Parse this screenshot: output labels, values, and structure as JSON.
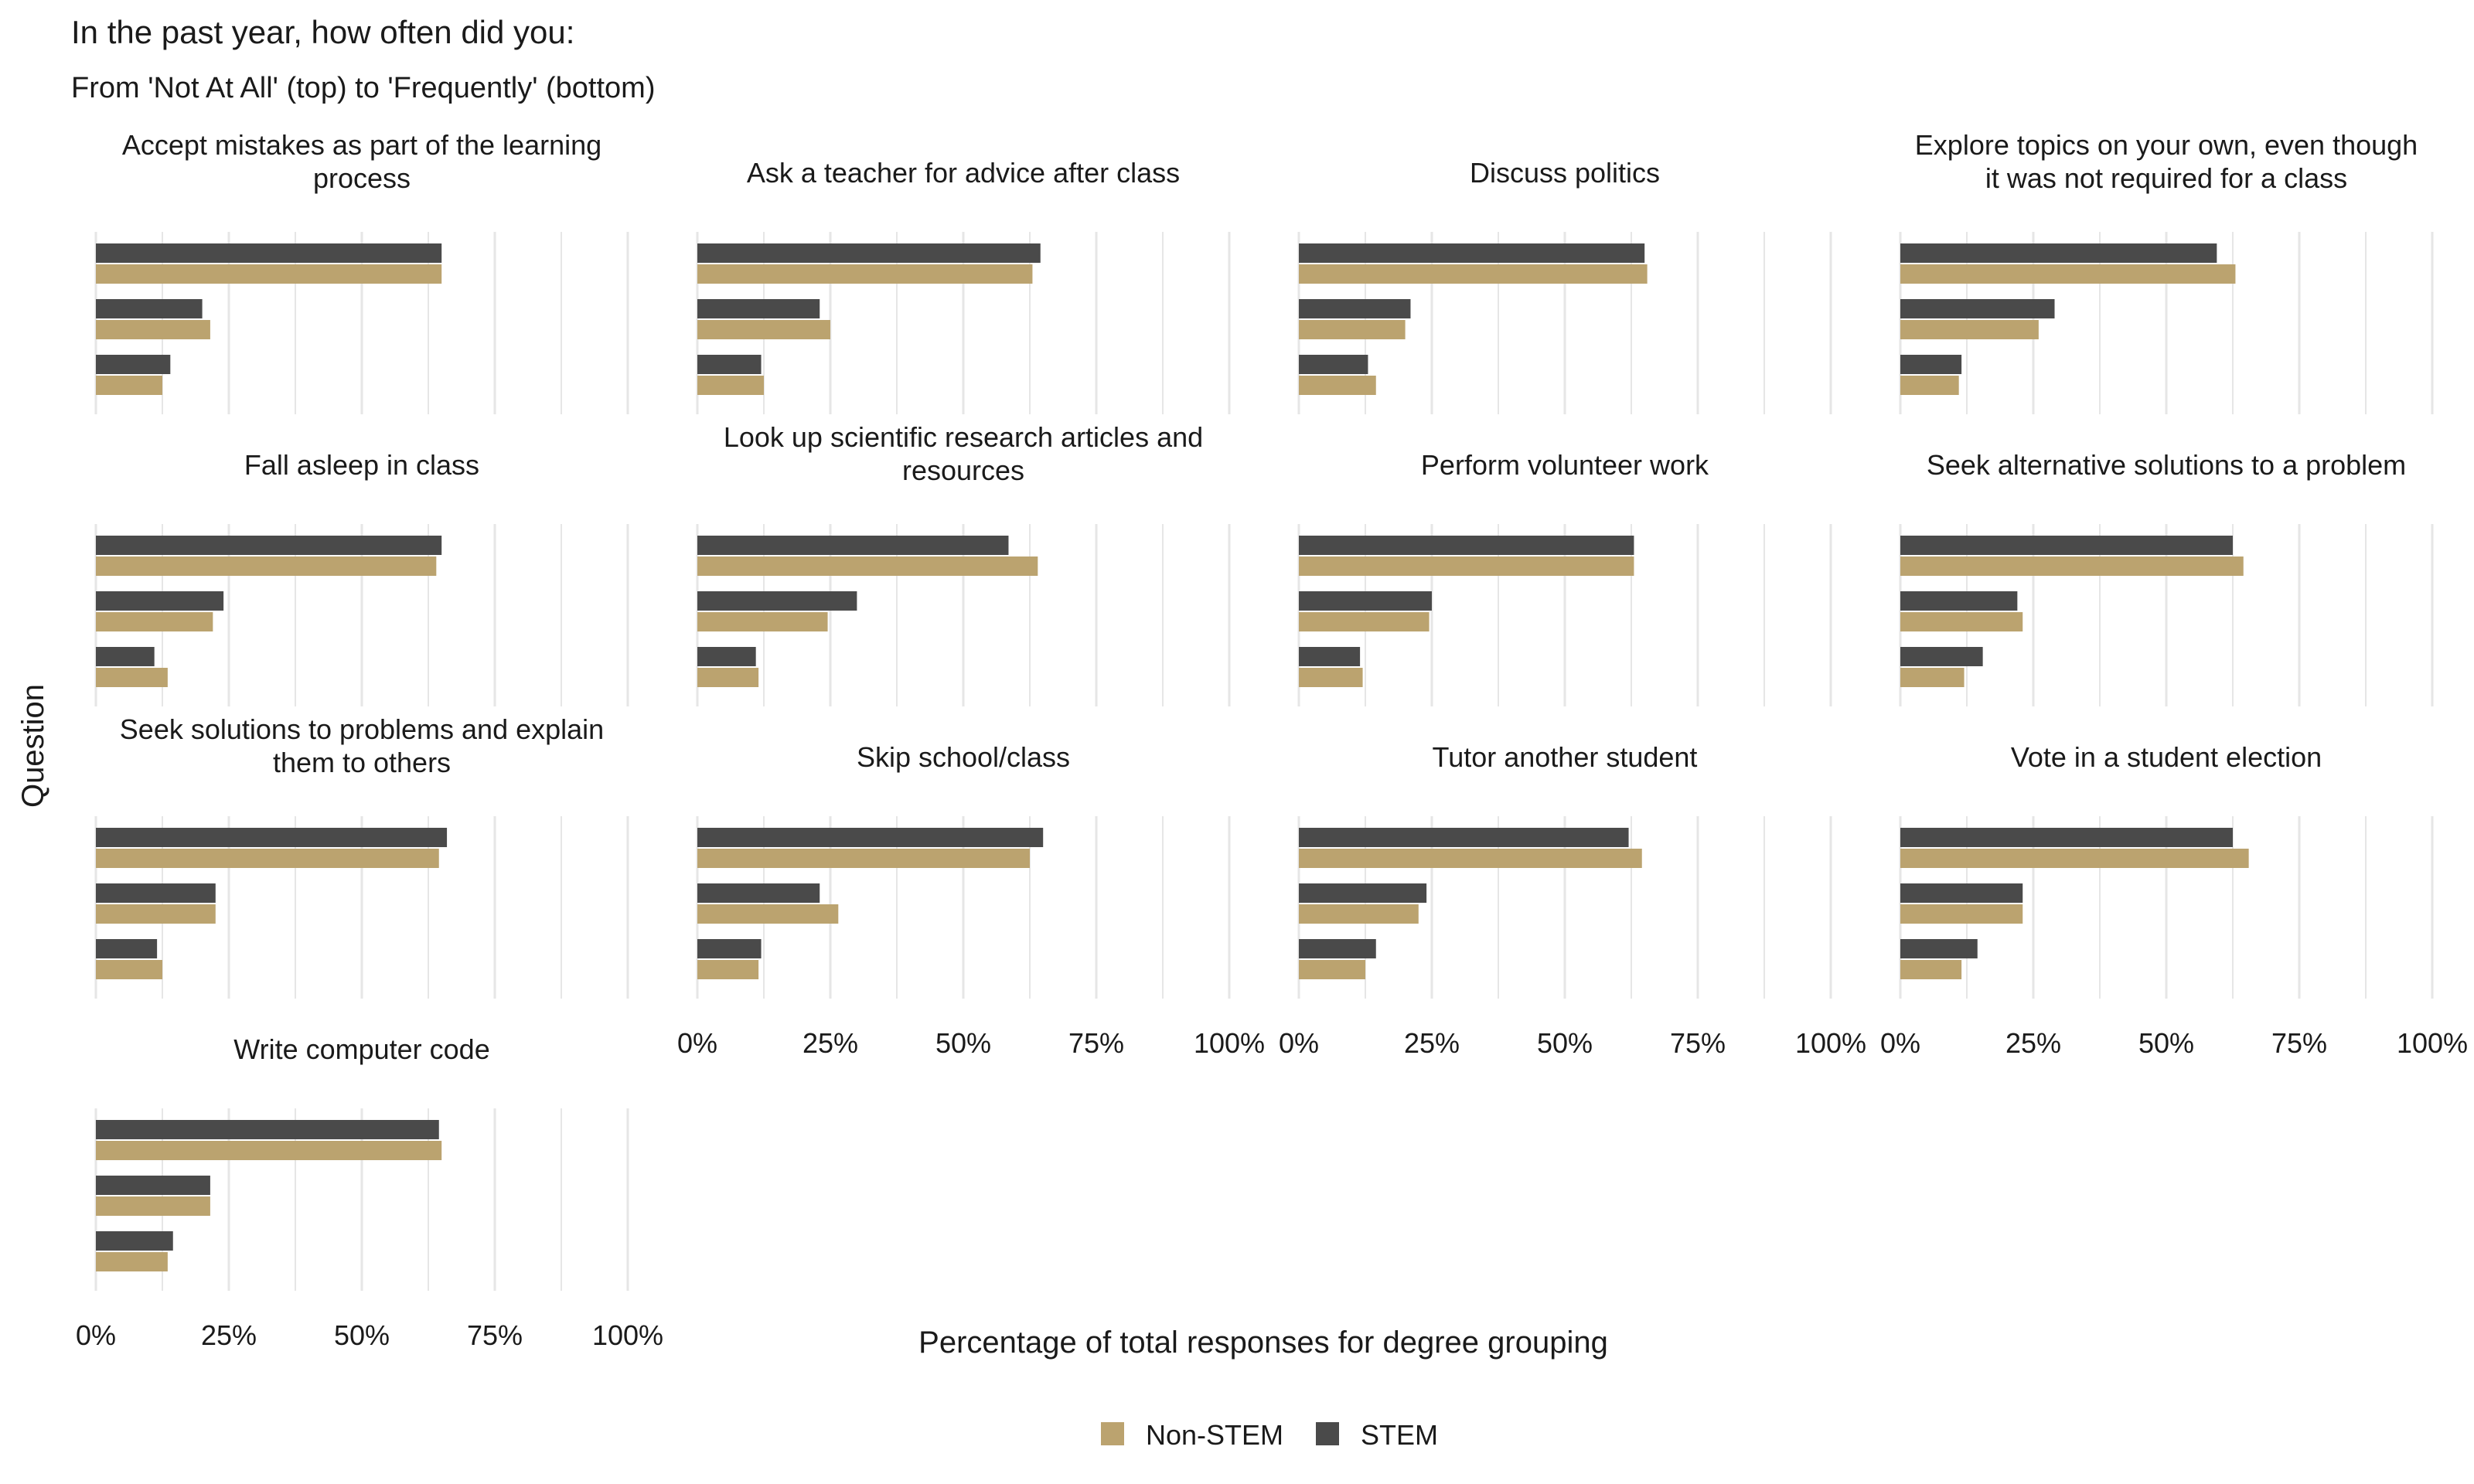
{
  "title": "In the past year, how often did you:",
  "subtitle": "From 'Not At All' (top) to 'Frequently' (bottom)",
  "colors": {
    "Non-STEM": "#bba36f",
    "STEM": "#4a4a4a",
    "grid": "#e6e6e6"
  },
  "chart_data": {
    "type": "bar",
    "orientation": "horizontal",
    "xlabel": "Percentage of total responses for degree grouping",
    "ylabel": "Question",
    "xlim": [
      0,
      100
    ],
    "x_ticks": [
      "0%",
      "25%",
      "50%",
      "75%",
      "100%"
    ],
    "legend": {
      "position": "bottom",
      "entries": [
        "Non-STEM",
        "STEM"
      ]
    },
    "grid": true,
    "facet_columns": 4,
    "series_names": [
      "STEM",
      "Non-STEM"
    ],
    "facets": [
      {
        "title": "Accept mistakes as part of the learning process",
        "STEM": [
          65,
          20,
          14
        ],
        "Non-STEM": [
          65,
          21.5,
          12.5
        ]
      },
      {
        "title": "Ask a teacher for advice after class",
        "STEM": [
          64.5,
          23,
          12
        ],
        "Non-STEM": [
          63,
          25,
          12.5
        ]
      },
      {
        "title": "Discuss politics",
        "STEM": [
          65,
          21,
          13
        ],
        "Non-STEM": [
          65.5,
          20,
          14.5
        ]
      },
      {
        "title": "Explore topics on your own, even though it was not required for a class",
        "STEM": [
          59.5,
          29,
          11.5
        ],
        "Non-STEM": [
          63,
          26,
          11
        ]
      },
      {
        "title": "Fall asleep in class",
        "STEM": [
          65,
          24,
          11
        ],
        "Non-STEM": [
          64,
          22,
          13.5
        ]
      },
      {
        "title": "Look up scientific research articles and resources",
        "STEM": [
          58.5,
          30,
          11
        ],
        "Non-STEM": [
          64,
          24.5,
          11.5
        ]
      },
      {
        "title": "Perform volunteer work",
        "STEM": [
          63,
          25,
          11.5
        ],
        "Non-STEM": [
          63,
          24.5,
          12
        ]
      },
      {
        "title": "Seek alternative solutions to a problem",
        "STEM": [
          62.5,
          22,
          15.5
        ],
        "Non-STEM": [
          64.5,
          23,
          12
        ]
      },
      {
        "title": "Seek solutions to problems and explain them to others",
        "STEM": [
          66,
          22.5,
          11.5
        ],
        "Non-STEM": [
          64.5,
          22.5,
          12.5
        ]
      },
      {
        "title": "Skip school/class",
        "STEM": [
          65,
          23,
          12
        ],
        "Non-STEM": [
          62.5,
          26.5,
          11.5
        ]
      },
      {
        "title": "Tutor another student",
        "STEM": [
          62,
          24,
          14.5
        ],
        "Non-STEM": [
          64.5,
          22.5,
          12.5
        ]
      },
      {
        "title": "Vote in a student election",
        "STEM": [
          62.5,
          23,
          14.5
        ],
        "Non-STEM": [
          65.5,
          23,
          11.5
        ]
      },
      {
        "title": "Write computer code",
        "STEM": [
          64.5,
          21.5,
          14.5
        ],
        "Non-STEM": [
          65,
          21.5,
          13.5
        ]
      }
    ]
  }
}
